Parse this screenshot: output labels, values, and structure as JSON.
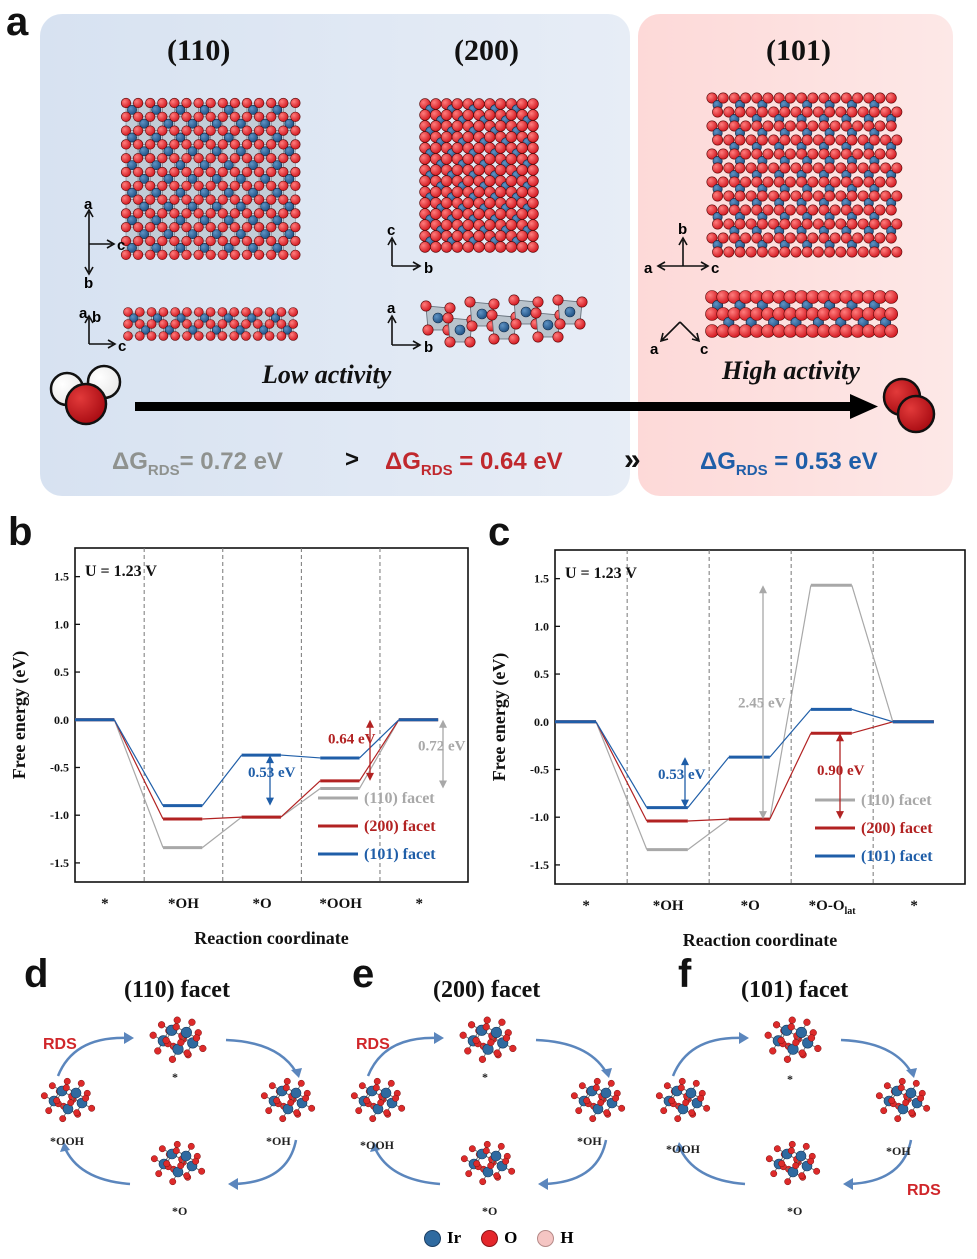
{
  "panel_a": {
    "letter": "a",
    "facets": [
      "(110)",
      "(200)",
      "(101)"
    ],
    "low_activity": "Low activity",
    "high_activity": "High activity",
    "dg_110": "0.72 eV",
    "dg_200": "0.64 eV",
    "dg_101": "0.53 eV",
    "dg_prefix": "ΔG",
    "dg_sub": "RDS",
    "dg_eq": "=",
    "sep1": ">",
    "sep2": "»",
    "axes": {
      "a110": "a",
      "b110": "b",
      "c110": "c",
      "a110s": "a",
      "b110s": "b",
      "c110s": "c",
      "c200": "c",
      "b200": "b",
      "a200s": "a",
      "b200s": "b",
      "b101": "b",
      "a101": "a",
      "c101": "c",
      "a101s": "a",
      "c101s": "c"
    },
    "colors": {
      "blue_bg": "#dde6f3",
      "red_bg": "#fde3e2",
      "gray": "#8f928f",
      "red": "#c0282d",
      "blue": "#1f5ea8"
    }
  },
  "chart_data": [
    {
      "type": "line",
      "panel": "b",
      "annotation": "U = 1.23 V",
      "xlabel": "Reaction coordinate",
      "ylabel": "Free energy (eV)",
      "categories": [
        "*",
        "*OH",
        "*O",
        "*OOH",
        "*"
      ],
      "ylim": [
        -1.7,
        1.8
      ],
      "yticks": [
        "1.5",
        "1.0",
        "0.5",
        "0.0",
        "-0.5",
        "-1.0",
        "-1.5"
      ],
      "series": [
        {
          "name": "(110) facet",
          "color": "#a8a8a8",
          "values": [
            0.0,
            -1.34,
            -1.02,
            -0.72,
            0.0
          ]
        },
        {
          "name": "(200) facet",
          "color": "#b22222",
          "values": [
            0.0,
            -1.04,
            -1.02,
            -0.64,
            0.0
          ]
        },
        {
          "name": "(101) facet",
          "color": "#1f5ea8",
          "values": [
            0.0,
            -0.9,
            -0.37,
            -0.4,
            0.0
          ]
        }
      ],
      "annotations": [
        {
          "text": "0.64 eV",
          "color": "#b22222"
        },
        {
          "text": "0.72 eV",
          "color": "#a8a8a8"
        },
        {
          "text": "0.53 eV",
          "color": "#1f5ea8"
        }
      ]
    },
    {
      "type": "line",
      "panel": "c",
      "annotation": "U = 1.23 V",
      "xlabel": "Reaction coordinate",
      "ylabel": "Free energy (eV)",
      "categories": [
        "*",
        "*OH",
        "*O",
        "*O-O",
        "*"
      ],
      "category_sub": "lat",
      "ylim": [
        -1.7,
        1.8
      ],
      "yticks": [
        "1.5",
        "1.0",
        "0.5",
        "0.0",
        "-0.5",
        "-1.0",
        "-1.5"
      ],
      "series": [
        {
          "name": "(110) facet",
          "color": "#a8a8a8",
          "values": [
            0.0,
            -1.34,
            -1.02,
            1.43,
            0.0
          ]
        },
        {
          "name": "(200) facet",
          "color": "#b22222",
          "values": [
            0.0,
            -1.04,
            -1.02,
            -0.12,
            0.0
          ]
        },
        {
          "name": "(101) facet",
          "color": "#1f5ea8",
          "values": [
            0.0,
            -0.9,
            -0.37,
            0.13,
            0.0
          ]
        }
      ],
      "annotations": [
        {
          "text": "2.45 eV",
          "color": "#a8a8a8"
        },
        {
          "text": "0.90 eV",
          "color": "#b22222"
        },
        {
          "text": "0.53 eV",
          "color": "#1f5ea8"
        }
      ]
    }
  ],
  "cycles": {
    "d": {
      "letter": "d",
      "title": "(110) facet",
      "rds": "RDS"
    },
    "e": {
      "letter": "e",
      "title": "(200) facet",
      "rds": "RDS"
    },
    "f": {
      "letter": "f",
      "title": "(101) facet",
      "rds": "RDS"
    },
    "states": [
      "*",
      "*OH",
      "*O",
      "*OOH"
    ]
  },
  "legend": {
    "ir": "Ir",
    "o": "O",
    "h": "H"
  },
  "panel_letters": {
    "b": "b",
    "c": "c"
  }
}
